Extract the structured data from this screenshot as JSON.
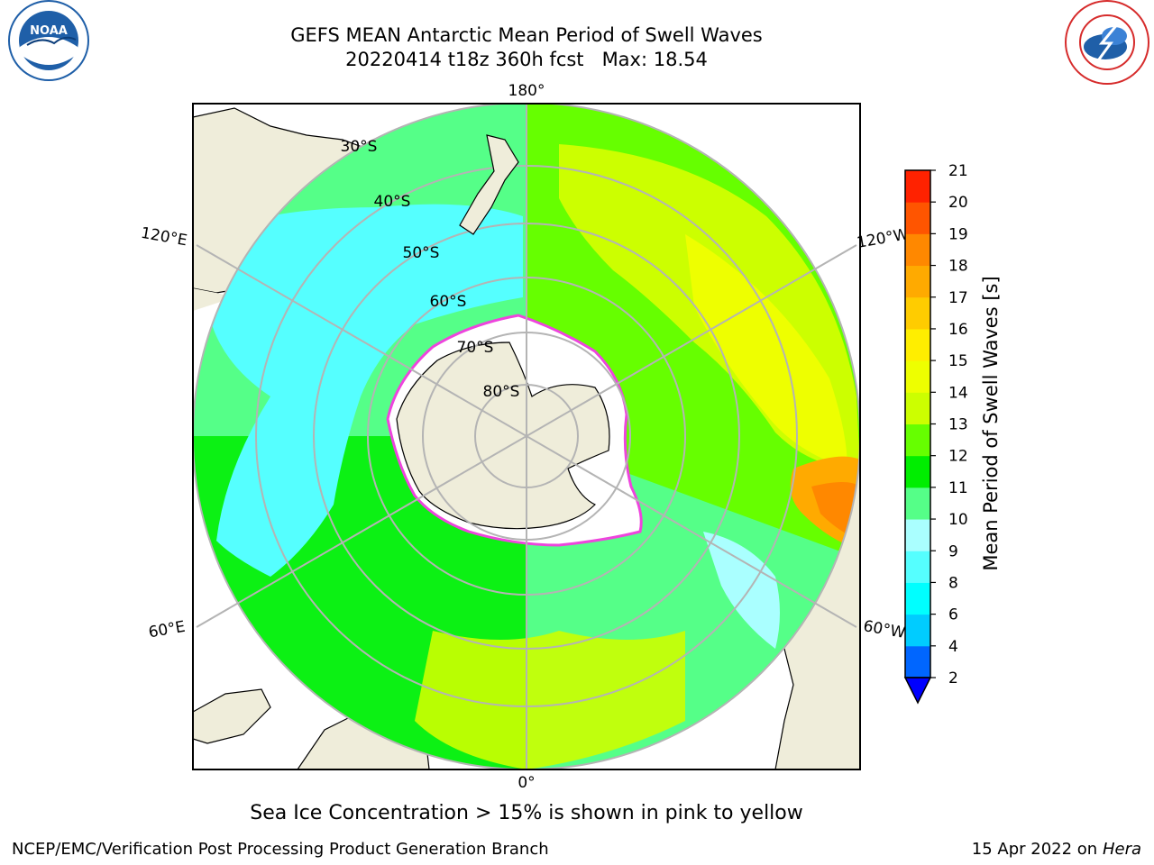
{
  "header": {
    "title_line1": "GEFS MEAN Antarctic Mean Period of Swell Waves",
    "title_line2": "20220414 t18z 360h fcst   Max: 18.54"
  },
  "logos": {
    "left": {
      "text": "NOAA",
      "icon": "noaa-logo-icon",
      "colors": [
        "#1f5fa8",
        "#ffffff"
      ]
    },
    "right": {
      "icon": "nws-logo-icon",
      "colors": [
        "#d62b2b",
        "#1f5fa8"
      ]
    }
  },
  "map": {
    "projection": "south-polar-stereographic",
    "longitude_labels": {
      "top": "180°",
      "bottom": "0°",
      "upper_left": "120°E",
      "upper_right": "120°W",
      "lower_left": "60°E",
      "lower_right": "60°W"
    },
    "latitude_labels": [
      "30°S",
      "40°S",
      "50°S",
      "60°S",
      "70°S",
      "80°S"
    ],
    "colors": {
      "land": "#efedda",
      "ice_edge": "#ee44dd",
      "gridline": "#b4b4b4",
      "frame": "#000000"
    }
  },
  "colorbar": {
    "label": "Mean Period of Swell Waves [s]",
    "ticks": [
      "2",
      "4",
      "6",
      "8",
      "9",
      "10",
      "11",
      "12",
      "13",
      "14",
      "15",
      "16",
      "17",
      "18",
      "19",
      "20",
      "21"
    ],
    "colors": [
      "#0066ff",
      "#00ccff",
      "#00ffff",
      "#55ffff",
      "#aaffff",
      "#55ff88",
      "#00ee00",
      "#66ff00",
      "#ccff00",
      "#eeff00",
      "#ffee00",
      "#ffcc00",
      "#ffaa00",
      "#ff8800",
      "#ff5500",
      "#ff2200"
    ],
    "under_color": "#0000ff"
  },
  "caption": "Sea Ice Concentration > 15% is shown in pink to yellow",
  "footer": {
    "left": "NCEP/EMC/Verification Post Processing Product Generation Branch",
    "right_date": "15 Apr 2022 on ",
    "right_host": "Hera"
  }
}
